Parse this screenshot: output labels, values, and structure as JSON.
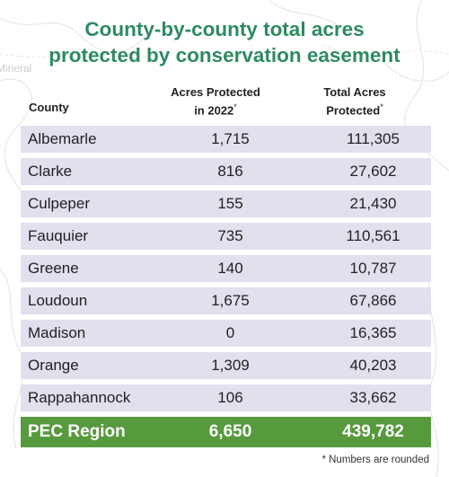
{
  "title_line1": "County-by-county total acres",
  "title_line2": "protected by conservation easement",
  "headers": {
    "county": "County",
    "acres_2022_line1": "Acres Protected",
    "acres_2022_line2": "in 2022",
    "acres_2022_mark": "*",
    "total_line1": "Total Acres",
    "total_line2": "Protected",
    "total_mark": "*"
  },
  "rows": [
    {
      "county": "Albemarle",
      "acres_2022": "1,715",
      "total": "111,305"
    },
    {
      "county": "Clarke",
      "acres_2022": "816",
      "total": "27,602"
    },
    {
      "county": "Culpeper",
      "acres_2022": "155",
      "total": "21,430"
    },
    {
      "county": "Fauquier",
      "acres_2022": "735",
      "total": "110,561"
    },
    {
      "county": "Greene",
      "acres_2022": "140",
      "total": "10,787"
    },
    {
      "county": "Loudoun",
      "acres_2022": "1,675",
      "total": "67,866"
    },
    {
      "county": "Madison",
      "acres_2022": "0",
      "total": "16,365"
    },
    {
      "county": "Orange",
      "acres_2022": "1,309",
      "total": "40,203"
    },
    {
      "county": "Rappahannock",
      "acres_2022": "106",
      "total": "33,662"
    }
  ],
  "total_row": {
    "label": "PEC Region",
    "acres_2022": "6,650",
    "total": "439,782"
  },
  "footnote": "* Numbers are rounded",
  "map_label": "Mineral",
  "colors": {
    "title": "#2e8a62",
    "row_bg": "#e1dcec",
    "total_bg": "#579a3e"
  }
}
